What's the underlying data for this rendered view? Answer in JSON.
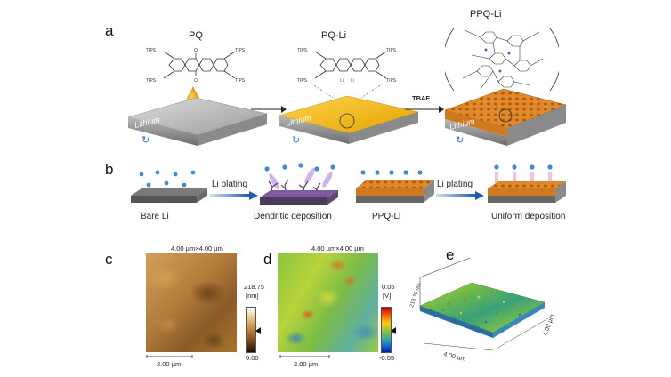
{
  "panels": {
    "a": {
      "letter": "a",
      "labels": {
        "pq": "PQ",
        "pq_li": "PQ-Li",
        "ppq_li": "PPQ-Li"
      },
      "tips": "TIPS",
      "li": "Li",
      "lithium": "Lithium",
      "tbaf": "TBAF"
    },
    "b": {
      "letter": "b",
      "steps": [
        {
          "substrate": "Bare Li",
          "arrow": "Li plating",
          "result": "Dendritic deposition"
        },
        {
          "substrate": "PPQ-Li",
          "arrow": "Li plating",
          "result": "Uniform deposition"
        }
      ]
    },
    "c": {
      "letter": "c",
      "title": "4.00 µm×4.00 µm",
      "scale": "2.00 µm",
      "bar_max": "218.75",
      "bar_unit": "[nm]",
      "bar_min": "0.00"
    },
    "d": {
      "letter": "d",
      "title": "4.00 µm×4.00 µm",
      "scale": "2.00 µm",
      "bar_max": "0.05",
      "bar_unit": "[V]",
      "bar_min": "-0.05"
    },
    "e": {
      "letter": "e",
      "z": "218.75 nm",
      "x": "4.00 µm",
      "y": "4.00 µm"
    }
  }
}
